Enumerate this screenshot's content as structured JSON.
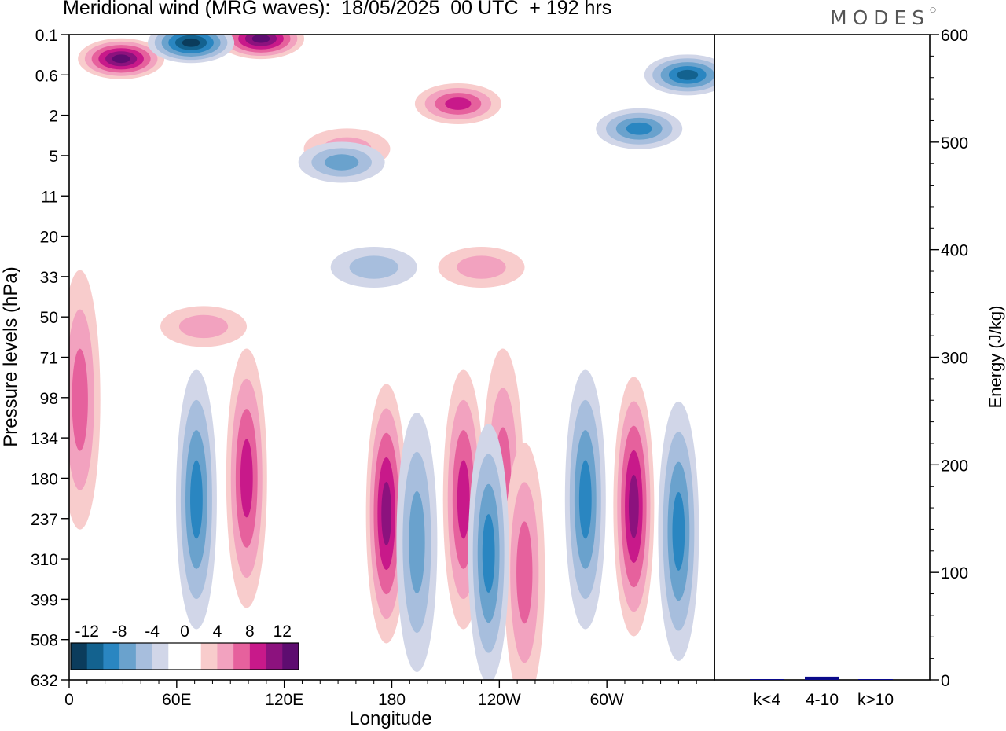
{
  "title": "Meridional wind (MRG waves):  18/05/2025  00 UTC  + 192 hrs",
  "logo_text": "MODES",
  "chart_data": [
    {
      "type": "heatmap",
      "variable": "Meridional wind",
      "xlabel": "Longitude",
      "ylabel": "Pressure levels (hPa)",
      "x_ticks": [
        "0",
        "60E",
        "120E",
        "180",
        "120W",
        "60W"
      ],
      "y_ticks": [
        "0.1",
        "0.6",
        "2",
        "5",
        "11",
        "20",
        "33",
        "50",
        "71",
        "98",
        "134",
        "180",
        "237",
        "310",
        "399",
        "508",
        "632"
      ],
      "colorbar": {
        "labels": [
          "-12",
          "-8",
          "-4",
          "0",
          "4",
          "8",
          "12"
        ],
        "colors": [
          "#0b3c5c",
          "#13628f",
          "#2a86c1",
          "#6aa2cd",
          "#a7bedd",
          "#d1d6e8",
          "#ffffff",
          "#ffffff",
          "#f8cccc",
          "#f2a2bf",
          "#e6619d",
          "#c8198a",
          "#8c127e",
          "#5e0c70"
        ]
      },
      "features": [
        {
          "type": "pink",
          "level": 5,
          "center": [
            29,
            0.4
          ]
        },
        {
          "type": "pink",
          "level": 5,
          "center": [
            107,
            0.15
          ]
        },
        {
          "type": "pink",
          "level": 3,
          "center": [
            217,
            1.6
          ]
        },
        {
          "type": "pink",
          "level": 1,
          "center": [
            155,
            4.5
          ]
        },
        {
          "type": "pink",
          "level": 1,
          "center": [
            230,
            30
          ]
        },
        {
          "type": "pink",
          "level": 1,
          "center": [
            75,
            55
          ]
        },
        {
          "type": "pink",
          "level": 2,
          "center": [
            6,
            100
          ]
        },
        {
          "type": "pink",
          "level": 3,
          "center": [
            99,
            180
          ]
        },
        {
          "type": "pink",
          "level": 4,
          "center": [
            177,
            230
          ]
        },
        {
          "type": "pink",
          "level": 3,
          "center": [
            220,
            210
          ]
        },
        {
          "type": "pink",
          "level": 2,
          "center": [
            242,
            180
          ]
        },
        {
          "type": "pink",
          "level": 2,
          "center": [
            254,
            340
          ]
        },
        {
          "type": "pink",
          "level": 4,
          "center": [
            315,
            220
          ]
        },
        {
          "type": "blue",
          "level": 5,
          "center": [
            68,
            0.2
          ]
        },
        {
          "type": "blue",
          "level": 4,
          "center": [
            345,
            0.6
          ]
        },
        {
          "type": "blue",
          "level": 3,
          "center": [
            318,
            3
          ]
        },
        {
          "type": "blue",
          "level": 2,
          "center": [
            152,
            6
          ]
        },
        {
          "type": "blue",
          "level": 1,
          "center": [
            170,
            30
          ]
        },
        {
          "type": "blue",
          "level": 3,
          "center": [
            71,
            210
          ]
        },
        {
          "type": "blue",
          "level": 3,
          "center": [
            234,
            300
          ]
        },
        {
          "type": "blue",
          "level": 2,
          "center": [
            194,
            280
          ]
        },
        {
          "type": "blue",
          "level": 3,
          "center": [
            288,
            210
          ]
        },
        {
          "type": "blue",
          "level": 3,
          "center": [
            340,
            260
          ]
        }
      ]
    },
    {
      "type": "bar",
      "ylabel": "Energy (J/kg)",
      "categories": [
        "k<4",
        "4-10",
        "k>10"
      ],
      "values": [
        0.5,
        3,
        0.3
      ],
      "ylim": [
        0,
        600
      ],
      "y_ticks": [
        "0",
        "100",
        "200",
        "300",
        "400",
        "500",
        "600"
      ],
      "bar_color": "#0a0a8a"
    }
  ]
}
